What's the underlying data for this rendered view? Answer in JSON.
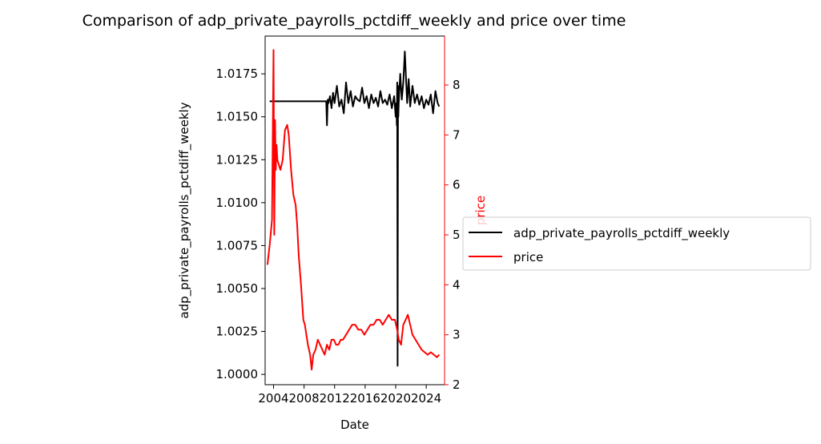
{
  "chart_data": {
    "type": "line",
    "title": "Comparison of adp_private_payrolls_pctdiff_weekly and price over time",
    "xlabel": "Date",
    "ylabel_left": "adp_private_payrolls_pctdiff_weekly",
    "ylabel_right": "price",
    "xlim": [
      2002.9,
      2026.4
    ],
    "ylim_left": [
      0.9994,
      1.0197
    ],
    "ylim_right": [
      2.0,
      8.98
    ],
    "x_ticks": [
      2004,
      2008,
      2012,
      2016,
      2020,
      2024
    ],
    "x_tick_labels": [
      "2004",
      "2008",
      "2012",
      "2016",
      "2020",
      "2024"
    ],
    "y_left_ticks": [
      1.0,
      1.0025,
      1.005,
      1.0075,
      1.01,
      1.0125,
      1.015,
      1.0175
    ],
    "y_left_tick_labels": [
      "1.0000",
      "1.0025",
      "1.0050",
      "1.0075",
      "1.0100",
      "1.0125",
      "1.0150",
      "1.0175"
    ],
    "y_right_ticks": [
      2,
      3,
      4,
      5,
      6,
      7,
      8
    ],
    "y_right_tick_labels": [
      "2",
      "3",
      "4",
      "5",
      "6",
      "7",
      "8"
    ],
    "grid": false,
    "legend_position": "right, outside plot",
    "series": [
      {
        "name": "adp_private_payrolls_pctdiff_weekly",
        "axis": "left",
        "color": "#000000",
        "x": [
          2003.5,
          2005.0,
          2007.0,
          2009.0,
          2010.9,
          2011.0,
          2011.1,
          2011.2,
          2011.4,
          2011.6,
          2011.8,
          2012.0,
          2012.3,
          2012.6,
          2012.9,
          2013.2,
          2013.5,
          2013.8,
          2014.1,
          2014.4,
          2014.7,
          2015.0,
          2015.3,
          2015.6,
          2015.9,
          2016.2,
          2016.5,
          2016.8,
          2017.1,
          2017.4,
          2017.7,
          2018.0,
          2018.3,
          2018.6,
          2018.9,
          2019.2,
          2019.5,
          2019.8,
          2020.0,
          2020.1,
          2020.15,
          2020.2,
          2020.25,
          2020.3,
          2020.35,
          2020.4,
          2020.6,
          2020.8,
          2021.0,
          2021.2,
          2021.5,
          2021.7,
          2021.9,
          2022.2,
          2022.5,
          2022.8,
          2023.1,
          2023.4,
          2023.7,
          2024.0,
          2024.3,
          2024.6,
          2024.9,
          2025.2,
          2025.5,
          2025.7
        ],
        "values": [
          1.0159,
          1.0159,
          1.0159,
          1.0159,
          1.0159,
          1.0145,
          1.016,
          1.0158,
          1.0162,
          1.0155,
          1.0164,
          1.0158,
          1.0168,
          1.0156,
          1.016,
          1.0152,
          1.017,
          1.0158,
          1.0165,
          1.0156,
          1.0162,
          1.016,
          1.0159,
          1.0167,
          1.0158,
          1.0162,
          1.0155,
          1.0163,
          1.0158,
          1.0161,
          1.0156,
          1.0165,
          1.0158,
          1.016,
          1.0157,
          1.0163,
          1.0155,
          1.0162,
          1.015,
          1.0158,
          1.0145,
          1.017,
          1.0005,
          1.0168,
          1.015,
          1.0158,
          1.0175,
          1.016,
          1.017,
          1.0188,
          1.0158,
          1.0172,
          1.0156,
          1.0168,
          1.0158,
          1.0163,
          1.0157,
          1.0162,
          1.0155,
          1.016,
          1.0157,
          1.0163,
          1.0152,
          1.0165,
          1.0158,
          1.0156
        ]
      },
      {
        "name": "price",
        "axis": "right",
        "color": "#ff0000",
        "x": [
          2003.2,
          2003.5,
          2003.8,
          2004.0,
          2004.1,
          2004.2,
          2004.3,
          2004.4,
          2004.5,
          2004.7,
          2004.9,
          2005.2,
          2005.5,
          2005.8,
          2006.0,
          2006.3,
          2006.6,
          2006.9,
          2007.1,
          2007.3,
          2007.6,
          2007.9,
          2008.1,
          2008.3,
          2008.5,
          2008.8,
          2009.0,
          2009.2,
          2009.5,
          2009.8,
          2010.1,
          2010.4,
          2010.7,
          2011.0,
          2011.3,
          2011.6,
          2011.9,
          2012.2,
          2012.5,
          2012.8,
          2013.1,
          2013.5,
          2013.9,
          2014.3,
          2014.7,
          2015.1,
          2015.5,
          2015.9,
          2016.3,
          2016.7,
          2017.1,
          2017.5,
          2017.9,
          2018.3,
          2018.7,
          2019.1,
          2019.5,
          2019.9,
          2020.2,
          2020.4,
          2020.7,
          2021.0,
          2021.3,
          2021.6,
          2021.9,
          2022.2,
          2022.6,
          2023.0,
          2023.4,
          2023.8,
          2024.2,
          2024.6,
          2025.0,
          2025.4,
          2025.7
        ],
        "values": [
          4.4,
          4.8,
          5.3,
          8.7,
          5.0,
          7.3,
          6.3,
          6.8,
          6.5,
          6.4,
          6.3,
          6.5,
          7.1,
          7.2,
          7.0,
          6.3,
          5.8,
          5.6,
          5.2,
          4.6,
          4.0,
          3.3,
          3.2,
          3.0,
          2.8,
          2.6,
          2.3,
          2.6,
          2.7,
          2.9,
          2.8,
          2.7,
          2.6,
          2.8,
          2.7,
          2.9,
          2.9,
          2.8,
          2.8,
          2.9,
          2.9,
          3.0,
          3.1,
          3.2,
          3.2,
          3.1,
          3.1,
          3.0,
          3.1,
          3.2,
          3.2,
          3.3,
          3.3,
          3.2,
          3.3,
          3.4,
          3.3,
          3.3,
          3.1,
          2.9,
          2.8,
          3.2,
          3.3,
          3.4,
          3.2,
          3.0,
          2.9,
          2.8,
          2.7,
          2.65,
          2.6,
          2.65,
          2.6,
          2.55,
          2.6
        ]
      }
    ]
  }
}
